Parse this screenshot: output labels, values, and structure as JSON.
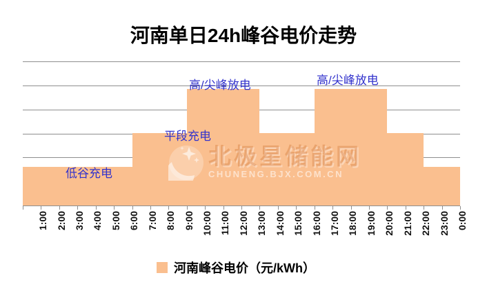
{
  "title": "河南单日24h峰谷电价走势",
  "legend": {
    "label": "河南峰谷电价（元/kWh）"
  },
  "watermark": {
    "text": "北极星储能网",
    "subtext": "CHUNENG.BJX.COM.CN"
  },
  "chart_data": {
    "type": "bar",
    "title": "河南单日24h峰谷电价走势",
    "xlabel": "",
    "ylabel": "",
    "categories": [
      "1:00",
      "2:00",
      "3:00",
      "4:00",
      "5:00",
      "6:00",
      "7:00",
      "8:00",
      "9:00",
      "10:00",
      "11:00",
      "12:00",
      "13:00",
      "14:00",
      "15:00",
      "16:00",
      "17:00",
      "18:00",
      "19:00",
      "20:00",
      "21:00",
      "22:00",
      "23:00",
      "0:00"
    ],
    "values": [
      0.32,
      0.32,
      0.32,
      0.32,
      0.32,
      0.32,
      0.6,
      0.6,
      0.6,
      0.97,
      0.97,
      0.97,
      0.97,
      0.6,
      0.6,
      0.6,
      0.97,
      0.97,
      0.97,
      0.97,
      0.6,
      0.6,
      0.32,
      0.32
    ],
    "series_name": "河南峰谷电价（元/kWh）",
    "ylim": [
      0,
      1.2
    ],
    "gridline_step": 0.2,
    "grid": "horizontal-only",
    "y_tick_labels_visible": false,
    "legend_position": "bottom",
    "bar_color": "#FABF8F",
    "gridline_color": "#8E8E8E",
    "annotation_color": "#3333CC",
    "annotations": [
      {
        "text": "低谷充电",
        "x": 95,
        "y": 243
      },
      {
        "text": "平段充电",
        "x": 238,
        "y": 189
      },
      {
        "text": "高/尖峰放电",
        "x": 274,
        "y": 115
      },
      {
        "text": "高/尖峰放电",
        "x": 459,
        "y": 108
      }
    ]
  }
}
